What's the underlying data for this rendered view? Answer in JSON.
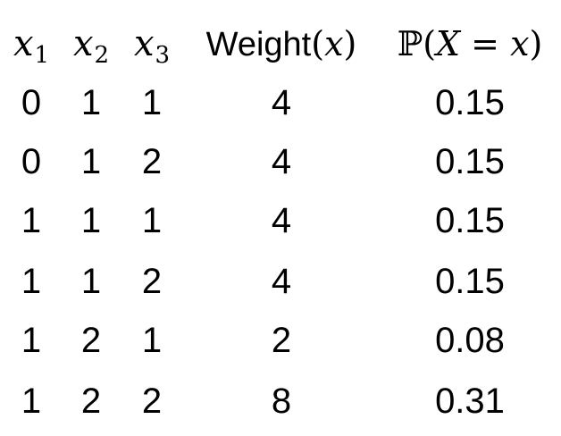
{
  "headers": {
    "x1": {
      "var": "x",
      "sub": "1"
    },
    "x2": {
      "var": "x",
      "sub": "2"
    },
    "x3": {
      "var": "x",
      "sub": "3"
    },
    "weight": {
      "word": "Weight",
      "open": "(",
      "var": "x",
      "close": ")"
    },
    "prob": {
      "P": "ℙ",
      "open": "(",
      "X": "X",
      "eq": " = ",
      "var": "x",
      "close": ")"
    }
  },
  "rows": [
    {
      "x1": "0",
      "x2": "1",
      "x3": "1",
      "weight": "4",
      "prob": "0.15"
    },
    {
      "x1": "0",
      "x2": "1",
      "x3": "2",
      "weight": "4",
      "prob": "0.15"
    },
    {
      "x1": "1",
      "x2": "1",
      "x3": "1",
      "weight": "4",
      "prob": "0.15"
    },
    {
      "x1": "1",
      "x2": "1",
      "x3": "2",
      "weight": "4",
      "prob": "0.15"
    },
    {
      "x1": "1",
      "x2": "2",
      "x3": "1",
      "weight": "2",
      "prob": "0.08"
    },
    {
      "x1": "1",
      "x2": "2",
      "x3": "2",
      "weight": "8",
      "prob": "0.31"
    }
  ]
}
